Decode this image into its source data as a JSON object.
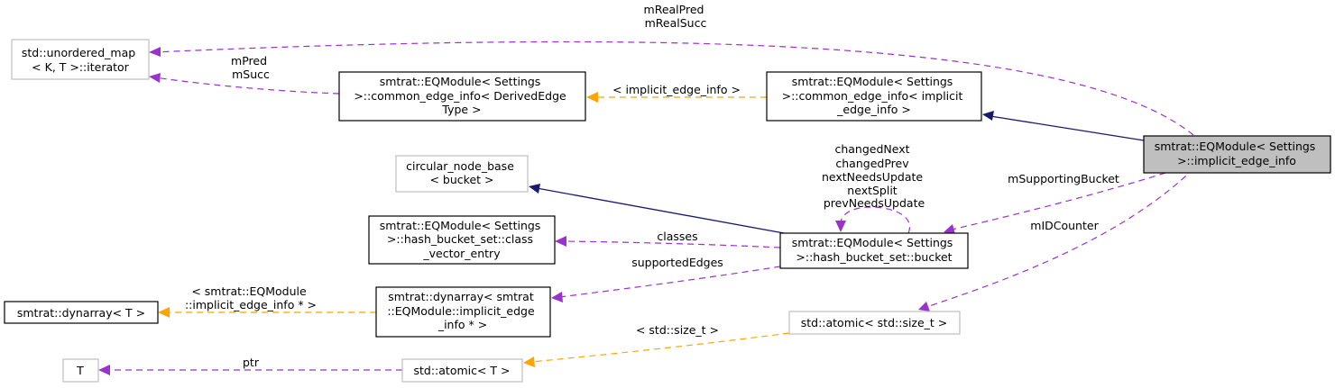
{
  "nodes": {
    "unordered_map_iterator": {
      "lines": [
        "std::unordered_map",
        "< K, T >::iterator"
      ]
    },
    "common_edge_info_derived": {
      "lines": [
        "smtrat::EQModule< Settings",
        ">::common_edge_info< DerivedEdge",
        "Type >"
      ]
    },
    "common_edge_info_implicit": {
      "lines": [
        "smtrat::EQModule< Settings",
        ">::common_edge_info< implicit",
        "_edge_info >"
      ]
    },
    "implicit_edge_info": {
      "lines": [
        "smtrat::EQModule< Settings",
        ">::implicit_edge_info"
      ]
    },
    "circular_node_base": {
      "lines": [
        "circular_node_base",
        "< bucket >"
      ]
    },
    "class_vector_entry": {
      "lines": [
        "smtrat::EQModule< Settings",
        ">::hash_bucket_set::class",
        "_vector_entry"
      ]
    },
    "bucket": {
      "lines": [
        "smtrat::EQModule< Settings",
        ">::hash_bucket_set::bucket"
      ]
    },
    "dynarray_T": {
      "lines": [
        "smtrat::dynarray< T >"
      ]
    },
    "dynarray_implicit": {
      "lines": [
        "smtrat::dynarray< smtrat",
        "::EQModule::implicit_edge",
        "_info * >"
      ]
    },
    "atomic_size_t": {
      "lines": [
        "std::atomic< std::size_t >"
      ]
    },
    "T": {
      "lines": [
        "T"
      ]
    },
    "atomic_T": {
      "lines": [
        "std::atomic< T >"
      ]
    }
  },
  "edges": {
    "real_pred_succ": [
      "mRealPred",
      "mRealSucc"
    ],
    "pred_succ": [
      "mPred",
      "mSucc"
    ],
    "implicit_edge_info_tmpl": [
      "< implicit_edge_info >"
    ],
    "supporting_bucket": [
      "mSupportingBucket"
    ],
    "id_counter": [
      "mIDCounter"
    ],
    "bucket_self": [
      "changedNext",
      "changedPrev",
      "nextNeedsUpdate",
      "nextSplit",
      "prevNeedsUpdate"
    ],
    "classes": [
      "classes"
    ],
    "supported_edges": [
      "supportedEdges"
    ],
    "dynarray_tmpl": [
      "< smtrat::EQModule",
      "::implicit_edge_info * >"
    ],
    "size_t_tmpl": [
      "< std::size_t >"
    ],
    "ptr": [
      "ptr"
    ]
  },
  "colors": {
    "inheritance": "#191970",
    "usage": "#9a32cd",
    "template": "#ffa500",
    "focus_fill": "#bfbfbf",
    "grey_border": "#bfbfbf"
  }
}
